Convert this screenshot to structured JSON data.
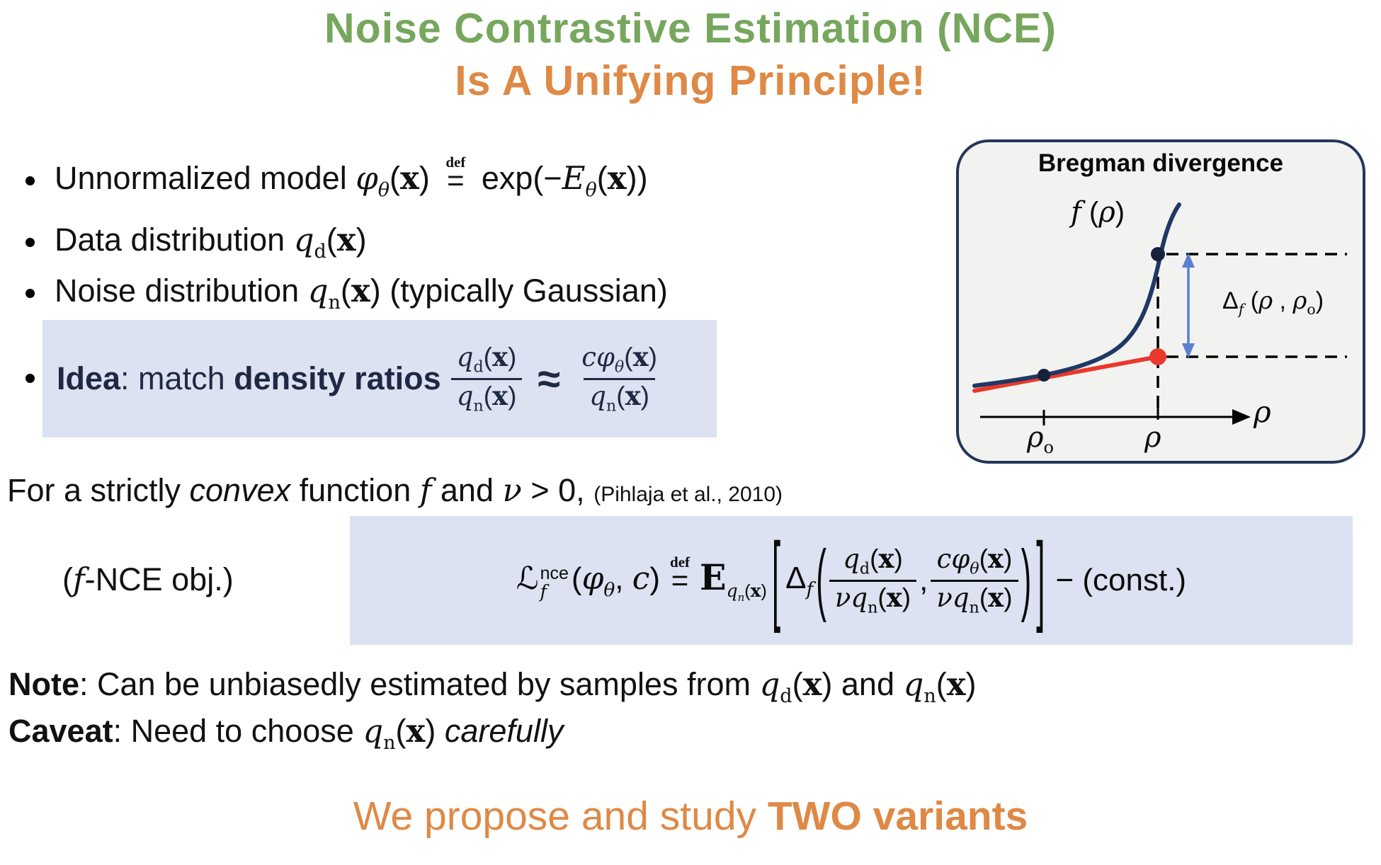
{
  "colors": {
    "green": "#76a75d",
    "orange": "#de8945",
    "highlight": "#dce2f1",
    "navy": "#1f2943",
    "ink": "#111111",
    "fig-bg": "#f2f2f1",
    "fig-border": "#25365b",
    "curve": "#1f3864",
    "red": "#e8392a",
    "blue": "#5b7ed1"
  },
  "slide": {
    "title": {
      "line1": "Noise Contrastive Estimation (NCE)",
      "line2": "Is A Unifying Principle!"
    },
    "bullets": {
      "b1": "Unnormalized model <span class='mi'>φ<sub>θ</sub></span>(<span class='vx'>x</span>) <span class='defeq'><span class='dd'>def</span><span class='de'>=</span></span> exp(−<span class='mi'>E<sub>θ</sub></span>(<span class='vx'>x</span>))",
      "b2": "Data distribution <span class='mi'>q</span><sub class='mr'>d</sub>(<span class='vx'>x</span>)",
      "b3": "Noise distribution <span class='mi'>q</span><sub class='mr'>n</sub>(<span class='vx'>x</span>) (typically Gaussian)"
    },
    "idea": {
      "label": "<b>Idea</b>: match <b>density ratios</b>",
      "frac1": {
        "num": "<span class='mi'>q</span><sub class='mr'>d</sub>(<span class='vx'>x</span>)",
        "den": "<span class='mi'>q</span><sub class='mr'>n</sub>(<span class='vx'>x</span>)"
      },
      "approx": "≈",
      "frac2": {
        "num": "<span class='mi'>cφ<sub>θ</sub></span>(<span class='vx'>x</span>)",
        "den": "<span class='mi'>q</span><sub class='mr'>n</sub>(<span class='vx'>x</span>)"
      }
    },
    "convex_line": "For a strictly <i>convex</i> function <span class='mi'>f</span> and <span class='mi'>ν</span> &gt; 0,",
    "citation": "(Pihlaja et al., 2010)",
    "objective": {
      "label": "(<span class='mi'>f</span>-NCE obj.)",
      "lhs": "<span class='scr'>ℒ</span><span class='supsub'><span>nce</span><span class='mi'>f</span></span>(<span class='mi'>φ<sub>θ</sub></span>, <span class='mi'>c</span>)",
      "defeq": "<span class='dd'>def</span><span class='de'>=</span>",
      "expectation": "<span class='bbE'>E</span><span class='esub'><span class='mi'>q<sub>n</sub></span>(<span class='vx'>x</span>)</span>",
      "lbrack": "[",
      "delta": "Δ<sub class='mi'>f</sub>",
      "lparen": "(",
      "frac1": {
        "num": "<span class='mi'>q</span><sub class='mr'>d</sub>(<span class='vx'>x</span>)",
        "den": "<span class='mi'>νq</span><sub class='mr'>n</sub>(<span class='vx'>x</span>)"
      },
      "comma": ",",
      "frac2": {
        "num": "<span class='mi'>cφ<sub>θ</sub></span>(<span class='vx'>x</span>)",
        "den": "<span class='mi'>νq</span><sub class='mr'>n</sub>(<span class='vx'>x</span>)"
      },
      "rparen": ")",
      "rbrack": "]",
      "tail": "− (const.)"
    },
    "note": "<b>Note</b>: Can be unbiasedly estimated by samples from <span class='mi'>q</span><sub class='mr'>d</sub>(<span class='vx'>x</span>) and <span class='mi'>q</span><sub class='mr'>n</sub>(<span class='vx'>x</span>)",
    "caveat": "<b>Caveat</b>: Need to choose <span class='mi'>q</span><sub class='mr'>n</sub>(<span class='vx'>x</span>) <i>carefully</i>",
    "closing": "We propose and study <b>TWO variants</b>",
    "figure": {
      "title": "Bregman divergence",
      "curve_label": "<span class='mi'>f</span> (<span class='mi'>ρ</span>)",
      "delta_label": "Δ<sub class='mi'>f</sub> (<span class='mi'>ρ</span> , <span class='mi'>ρ</span><sub class='mr'>o</sub>)",
      "axis_label": "<span class='mi'>ρ</span>",
      "tick_left": "<span class='mi'>ρ</span><sub class='mr'>o</sub>",
      "tick_right": "<span class='mi'>ρ</span>"
    }
  }
}
